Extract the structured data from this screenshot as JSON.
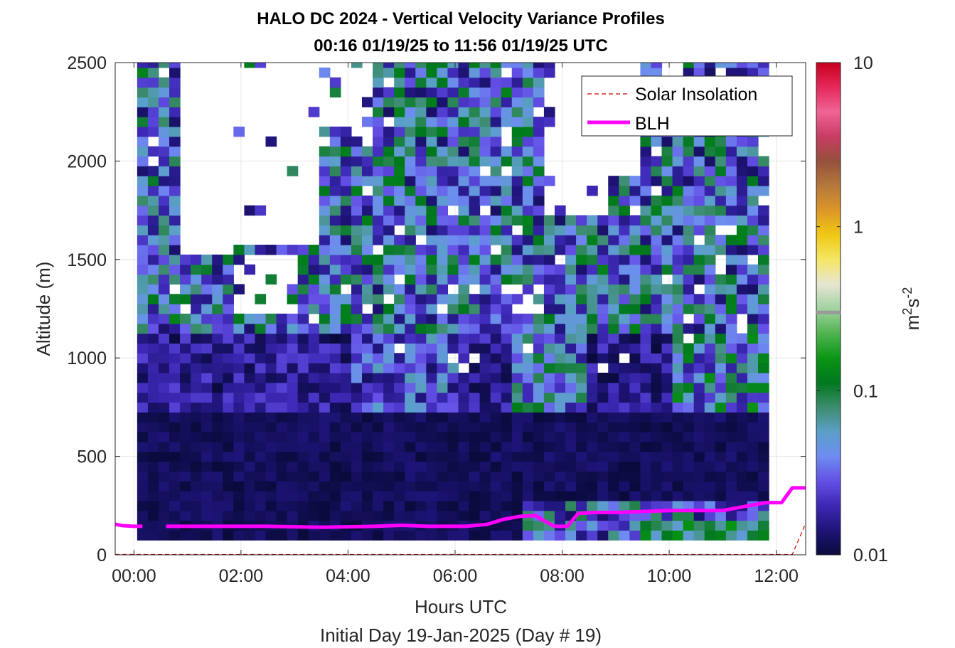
{
  "chart_data": {
    "type": "heatmap",
    "title": "HALO DC 2024 - Vertical Velocity Variance Profiles",
    "subtitle": "00:16 01/19/25 to 11:56 01/19/25  UTC",
    "xlabel": "Hours UTC",
    "xlabel2": "Initial Day 19-Jan-2025 (Day # 19)",
    "ylabel": "Altitude (m)",
    "xlim": [
      -0.35,
      12.55
    ],
    "ylim": [
      0,
      2500
    ],
    "x_ticks": [
      0,
      2,
      4,
      6,
      8,
      10,
      12
    ],
    "x_tick_labels": [
      "00:00",
      "02:00",
      "04:00",
      "06:00",
      "08:00",
      "10:00",
      "12:00"
    ],
    "y_ticks": [
      0,
      500,
      1000,
      1500,
      2000,
      2500
    ],
    "y_tick_labels": [
      "0",
      "500",
      "1000",
      "1500",
      "2000",
      "2500"
    ],
    "grid": true,
    "colorbar": {
      "label": "m²s⁻²",
      "label_base": "m",
      "label_exp1": "2",
      "label_mid": "s",
      "label_exp2": "-2",
      "scale": "log",
      "range": [
        0.01,
        10
      ],
      "ticks": [
        0.01,
        0.1,
        1,
        10
      ],
      "tick_labels": [
        "0.01",
        "0.1",
        "1",
        "10"
      ],
      "colors": [
        "#0a0a3c",
        "#1e1478",
        "#3c28b4",
        "#6450e6",
        "#6e8cf0",
        "#5aa0c8",
        "#3c8c6e",
        "#00781e",
        "#0a9614",
        "#50b450",
        "#a0d2a0",
        "#e6e6d2",
        "#f5e664",
        "#f0c814",
        "#dc9628",
        "#b4783c",
        "#96503c",
        "#c83c64",
        "#f06496",
        "#e6285a",
        "#c8001e"
      ],
      "marker_value": 0.3
    },
    "legend": {
      "placement": "top-right",
      "entries": [
        {
          "name": "Solar Insolation",
          "color": "#cc0000",
          "style": "dashed"
        },
        {
          "name": "BLH",
          "color": "#ff00ff",
          "style": "solid"
        }
      ]
    },
    "heatmap_grid": {
      "x_start": 0.16,
      "x_step": 0.2,
      "columns": 59,
      "y_start": 100,
      "y_step": 50,
      "rows": 49,
      "note": "variance values in m^2 s^-2, log-scaled; profiles 00:16-11:56 UTC, 100-2500 m"
    },
    "series": [
      {
        "name": "BLH",
        "color": "#ff00ff",
        "x": [
          -0.35,
          -0.2,
          0.0,
          0.16,
          0.6,
          1.5,
          2.5,
          3.5,
          4.5,
          5.0,
          5.5,
          6.2,
          6.6,
          6.9,
          7.2,
          7.5,
          7.65,
          7.85,
          8.1,
          8.3,
          8.6,
          9.0,
          9.5,
          10.0,
          10.5,
          11.0,
          11.2,
          11.5,
          11.8,
          12.1,
          12.3,
          12.55
        ],
        "y": [
          155,
          148,
          145,
          145,
          145,
          145,
          145,
          140,
          145,
          150,
          145,
          145,
          155,
          180,
          195,
          200,
          175,
          145,
          145,
          210,
          215,
          215,
          220,
          225,
          225,
          225,
          235,
          250,
          265,
          265,
          340,
          340
        ],
        "gap_between_x": [
          0.16,
          0.6
        ]
      },
      {
        "name": "Solar Insolation",
        "color": "#cc0000",
        "x": [
          -0.35,
          12.3,
          12.55
        ],
        "y": [
          2,
          2,
          160
        ]
      }
    ]
  }
}
